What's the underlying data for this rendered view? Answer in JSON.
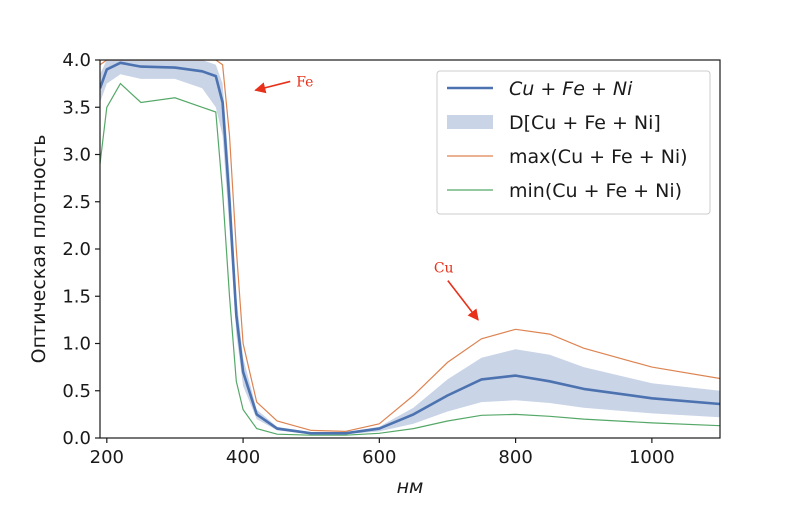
{
  "chart_data": {
    "type": "line",
    "xlabel": "нм",
    "ylabel": "Оптическая плотность",
    "xlim": [
      190,
      1100
    ],
    "ylim": [
      0,
      4.0
    ],
    "grid": false,
    "legend_position": "top-right",
    "x_ticks": [
      200,
      400,
      600,
      800,
      1000
    ],
    "x_tick_labels": [
      "200",
      "400",
      "600",
      "800",
      "1000"
    ],
    "y_ticks": [
      0,
      0.5,
      1.0,
      1.5,
      2.0,
      2.5,
      3.0,
      3.5,
      4.0
    ],
    "y_tick_labels": [
      "0.0",
      "0.5",
      "1.0",
      "1.5",
      "2.0",
      "2.5",
      "3.0",
      "3.5",
      "4.0"
    ],
    "legend": [
      {
        "key": "mean",
        "label": "Cu + Fe + Ni",
        "italic": true,
        "style": "line",
        "color": "#4c72b0"
      },
      {
        "key": "band",
        "label": "D[Cu + Fe + Ni]",
        "italic": false,
        "style": "patch",
        "color": "#4c72b0"
      },
      {
        "key": "max",
        "label": "max(Cu + Fe + Ni)",
        "italic": false,
        "style": "line",
        "color": "#dd8452"
      },
      {
        "key": "min",
        "label": "min(Cu + Fe + Ni)",
        "italic": false,
        "style": "line",
        "color": "#55a868"
      }
    ],
    "series": [
      {
        "key": "mean",
        "color": "#4c72b0",
        "x": [
          190,
          200,
          220,
          250,
          300,
          340,
          360,
          370,
          380,
          390,
          400,
          420,
          450,
          500,
          550,
          600,
          650,
          700,
          750,
          800,
          850,
          900,
          1000,
          1100
        ],
        "y": [
          3.7,
          3.9,
          3.97,
          3.93,
          3.92,
          3.88,
          3.83,
          3.55,
          2.5,
          1.3,
          0.7,
          0.25,
          0.1,
          0.05,
          0.05,
          0.1,
          0.25,
          0.45,
          0.62,
          0.66,
          0.6,
          0.52,
          0.42,
          0.36
        ]
      },
      {
        "key": "band",
        "color": "#4c72b0",
        "x": [
          190,
          200,
          220,
          250,
          300,
          340,
          360,
          370,
          380,
          390,
          400,
          420,
          450,
          500,
          550,
          600,
          650,
          700,
          750,
          800,
          850,
          900,
          1000,
          1100
        ],
        "y_lower": [
          3.55,
          3.75,
          3.85,
          3.8,
          3.8,
          3.7,
          3.5,
          3.2,
          2.2,
          1.1,
          0.55,
          0.2,
          0.08,
          0.04,
          0.04,
          0.07,
          0.15,
          0.28,
          0.38,
          0.4,
          0.37,
          0.32,
          0.26,
          0.22
        ],
        "y_upper": [
          3.85,
          4.0,
          4.0,
          4.0,
          4.0,
          4.0,
          3.95,
          3.75,
          2.8,
          1.5,
          0.85,
          0.3,
          0.12,
          0.06,
          0.06,
          0.12,
          0.32,
          0.62,
          0.85,
          0.94,
          0.88,
          0.75,
          0.58,
          0.5
        ]
      },
      {
        "key": "max",
        "color": "#dd8452",
        "x": [
          190,
          200,
          220,
          250,
          300,
          340,
          360,
          370,
          380,
          390,
          400,
          420,
          450,
          500,
          550,
          600,
          650,
          700,
          750,
          800,
          850,
          900,
          1000,
          1100
        ],
        "y": [
          3.95,
          4.0,
          4.0,
          4.0,
          4.0,
          4.0,
          4.0,
          3.95,
          3.2,
          2.0,
          1.0,
          0.38,
          0.18,
          0.08,
          0.07,
          0.15,
          0.45,
          0.8,
          1.05,
          1.15,
          1.1,
          0.95,
          0.75,
          0.63
        ]
      },
      {
        "key": "min",
        "color": "#55a868",
        "x": [
          190,
          200,
          220,
          250,
          300,
          340,
          360,
          370,
          380,
          390,
          400,
          420,
          450,
          500,
          550,
          600,
          650,
          700,
          750,
          800,
          850,
          900,
          1000,
          1100
        ],
        "y": [
          2.9,
          3.5,
          3.75,
          3.55,
          3.6,
          3.5,
          3.45,
          2.6,
          1.5,
          0.6,
          0.3,
          0.1,
          0.04,
          0.03,
          0.03,
          0.05,
          0.1,
          0.18,
          0.24,
          0.25,
          0.23,
          0.2,
          0.16,
          0.13
        ]
      }
    ],
    "annotations": [
      {
        "key": "fe",
        "text": "Fe",
        "text_x": 478,
        "text_y": 3.72,
        "arrow_to_x": 418,
        "arrow_to_y": 3.68,
        "color": "#e8311a"
      },
      {
        "key": "cu",
        "text": "Cu",
        "text_x": 680,
        "text_y": 1.75,
        "arrow_to_x": 745,
        "arrow_to_y": 1.25,
        "color": "#e8311a"
      }
    ]
  }
}
